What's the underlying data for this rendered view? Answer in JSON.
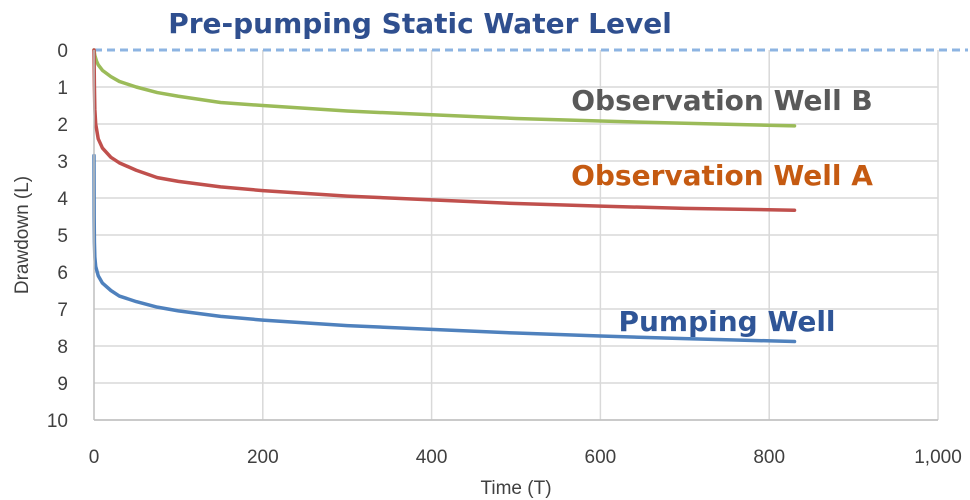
{
  "chart_data": {
    "type": "line",
    "title": "",
    "xlabel": "Time (T)",
    "ylabel": "Drawdown (L)",
    "xlim": [
      0,
      1000
    ],
    "ylim": [
      0,
      10
    ],
    "y_inverted": true,
    "x_ticks": [
      0,
      200,
      400,
      600,
      800,
      1000
    ],
    "x_tick_labels": [
      "0",
      "200",
      "400",
      "600",
      "800",
      "1,000"
    ],
    "y_ticks": [
      0,
      1,
      2,
      3,
      4,
      5,
      6,
      7,
      8,
      9,
      10
    ],
    "y_tick_labels": [
      "0",
      "1",
      "2",
      "3",
      "4",
      "5",
      "6",
      "7",
      "8",
      "9",
      "10"
    ],
    "grid": true,
    "reference_line": {
      "label": "Pre-pumping Static Water Level",
      "y": 0,
      "color": "#8db4e2",
      "label_color": "#2f4f8f",
      "style": "dashed"
    },
    "series": [
      {
        "name": "Observation Well B",
        "color": "#9bbb59",
        "label_color": "#595959",
        "x": [
          0,
          1,
          3,
          5,
          10,
          20,
          30,
          50,
          75,
          100,
          150,
          200,
          300,
          400,
          500,
          600,
          700,
          830
        ],
        "y": [
          0,
          0.15,
          0.3,
          0.4,
          0.55,
          0.72,
          0.85,
          1.0,
          1.15,
          1.25,
          1.42,
          1.5,
          1.65,
          1.75,
          1.85,
          1.92,
          1.98,
          2.05
        ]
      },
      {
        "name": "Observation Well A",
        "color": "#c0504d",
        "label_color": "#c55a11",
        "x": [
          0,
          0.5,
          1,
          2,
          5,
          10,
          20,
          30,
          50,
          75,
          100,
          150,
          200,
          300,
          400,
          500,
          600,
          700,
          830
        ],
        "y": [
          0,
          1.0,
          1.6,
          2.0,
          2.4,
          2.65,
          2.9,
          3.05,
          3.25,
          3.45,
          3.55,
          3.7,
          3.8,
          3.95,
          4.05,
          4.15,
          4.22,
          4.28,
          4.33
        ]
      },
      {
        "name": "Pumping Well",
        "color": "#4f81bd",
        "label_color": "#2f5597",
        "x": [
          0,
          0.2,
          0.5,
          1,
          2,
          5,
          10,
          20,
          30,
          50,
          75,
          100,
          150,
          200,
          300,
          400,
          500,
          600,
          700,
          830
        ],
        "y": [
          2.85,
          4.5,
          5.2,
          5.6,
          5.85,
          6.1,
          6.3,
          6.5,
          6.65,
          6.8,
          6.95,
          7.05,
          7.2,
          7.3,
          7.45,
          7.55,
          7.65,
          7.73,
          7.8,
          7.88
        ]
      }
    ]
  }
}
